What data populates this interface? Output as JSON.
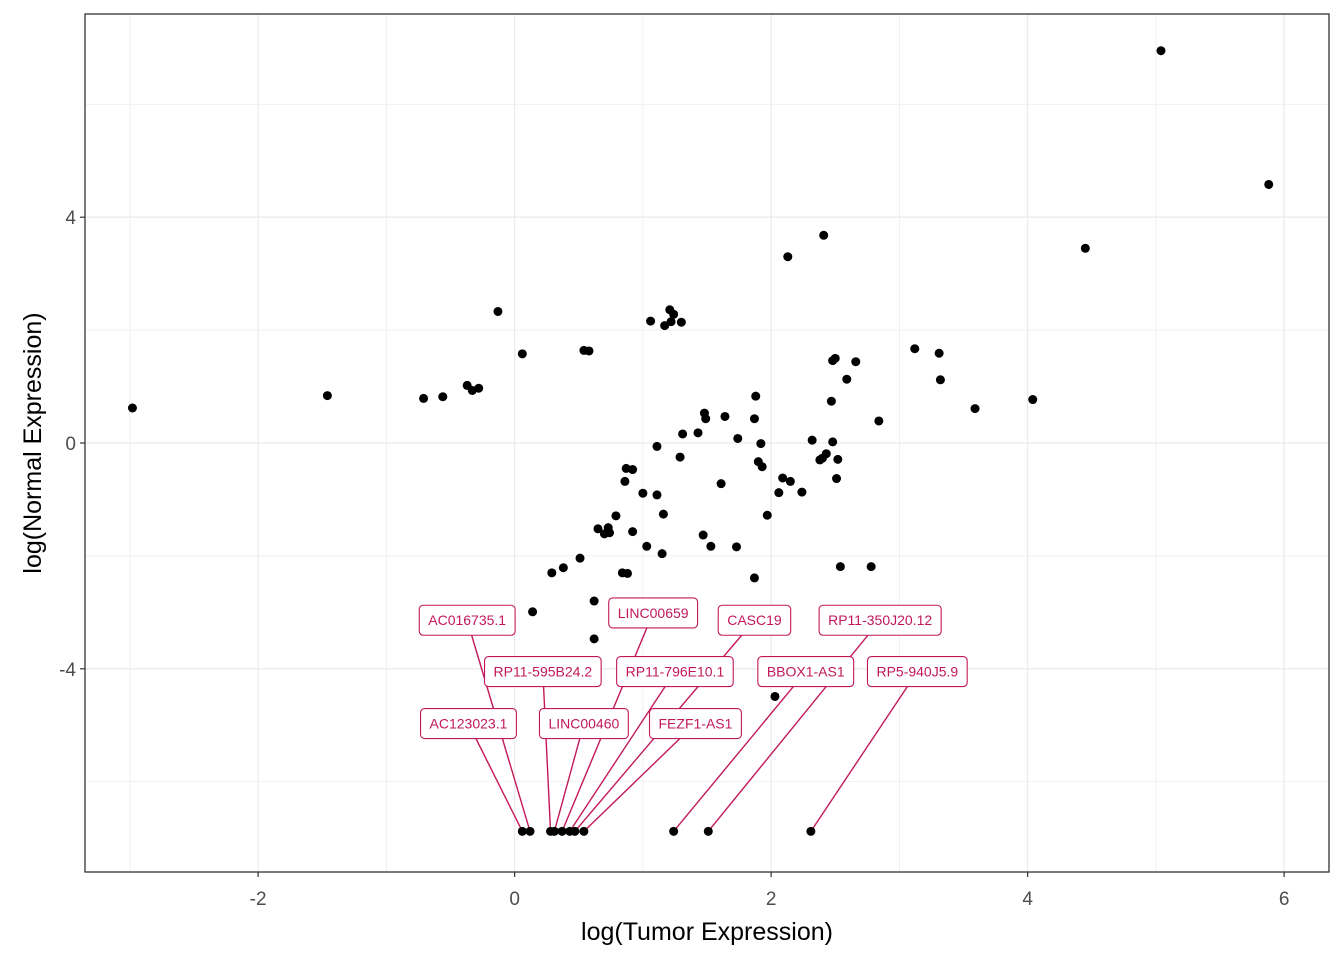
{
  "chart_data": {
    "type": "scatter",
    "title": "",
    "xlabel": "log(Tumor Expression)",
    "ylabel": "log(Normal Expression)",
    "xlim": [
      -3.35,
      6.35
    ],
    "ylim": [
      -7.6,
      7.6
    ],
    "x_ticks": [
      -2,
      0,
      2,
      4,
      6
    ],
    "y_ticks": [
      -4,
      0,
      4
    ],
    "x_tick_labels": [
      "-2",
      "0",
      "2",
      "4",
      "6"
    ],
    "y_tick_labels": [
      "-4",
      "0",
      "4"
    ],
    "grid": true,
    "colors": {
      "points": "#000000",
      "label": "#c2185b",
      "grid": "#ebebeb",
      "panel_border": "#333333"
    },
    "points": [
      [
        -2.98,
        0.62
      ],
      [
        -1.46,
        0.84
      ],
      [
        -0.71,
        0.79
      ],
      [
        -0.56,
        0.82
      ],
      [
        -0.37,
        1.02
      ],
      [
        -0.33,
        0.93
      ],
      [
        -0.28,
        0.97
      ],
      [
        -0.13,
        2.33
      ],
      [
        0.06,
        1.58
      ],
      [
        0.54,
        1.64
      ],
      [
        0.58,
        1.63
      ],
      [
        1.06,
        2.16
      ],
      [
        1.17,
        2.08
      ],
      [
        1.21,
        2.36
      ],
      [
        1.24,
        2.28
      ],
      [
        1.22,
        2.15
      ],
      [
        1.3,
        2.14
      ],
      [
        2.41,
        3.68
      ],
      [
        2.13,
        3.3
      ],
      [
        4.45,
        3.45
      ],
      [
        5.04,
        6.95
      ],
      [
        5.88,
        4.58
      ],
      [
        3.12,
        1.67
      ],
      [
        3.31,
        1.59
      ],
      [
        3.32,
        1.12
      ],
      [
        2.48,
        1.46
      ],
      [
        2.5,
        1.5
      ],
      [
        2.66,
        1.44
      ],
      [
        2.59,
        1.13
      ],
      [
        2.47,
        0.74
      ],
      [
        1.88,
        0.83
      ],
      [
        1.87,
        0.43
      ],
      [
        1.48,
        0.53
      ],
      [
        1.49,
        0.43
      ],
      [
        1.64,
        0.47
      ],
      [
        1.43,
        0.18
      ],
      [
        1.31,
        0.16
      ],
      [
        1.11,
        -0.06
      ],
      [
        1.29,
        -0.25
      ],
      [
        1.74,
        0.08
      ],
      [
        1.92,
        -0.01
      ],
      [
        2.32,
        0.05
      ],
      [
        2.48,
        0.02
      ],
      [
        2.43,
        -0.19
      ],
      [
        2.4,
        -0.27
      ],
      [
        2.38,
        -0.3
      ],
      [
        2.52,
        -0.29
      ],
      [
        1.9,
        -0.33
      ],
      [
        1.93,
        -0.42
      ],
      [
        2.09,
        -0.62
      ],
      [
        2.15,
        -0.68
      ],
      [
        2.51,
        -0.63
      ],
      [
        2.24,
        -0.87
      ],
      [
        2.06,
        -0.88
      ],
      [
        1.61,
        -0.72
      ],
      [
        1.97,
        -1.28
      ],
      [
        2.84,
        0.39
      ],
      [
        3.59,
        0.61
      ],
      [
        4.04,
        0.77
      ],
      [
        0.87,
        -0.45
      ],
      [
        0.92,
        -0.47
      ],
      [
        0.86,
        -0.68
      ],
      [
        1.11,
        -0.92
      ],
      [
        1.0,
        -0.89
      ],
      [
        1.16,
        -1.26
      ],
      [
        0.79,
        -1.29
      ],
      [
        0.65,
        -1.52
      ],
      [
        0.73,
        -1.5
      ],
      [
        0.74,
        -1.59
      ],
      [
        0.7,
        -1.61
      ],
      [
        0.92,
        -1.57
      ],
      [
        1.03,
        -1.83
      ],
      [
        1.15,
        -1.96
      ],
      [
        0.51,
        -2.04
      ],
      [
        0.38,
        -2.21
      ],
      [
        0.29,
        -2.3
      ],
      [
        0.84,
        -2.3
      ],
      [
        0.88,
        -2.31
      ],
      [
        1.87,
        -2.39
      ],
      [
        0.14,
        -2.99
      ],
      [
        0.62,
        -2.8
      ],
      [
        0.62,
        -3.47
      ],
      [
        1.47,
        -1.63
      ],
      [
        1.53,
        -1.83
      ],
      [
        1.73,
        -1.84
      ],
      [
        2.54,
        -2.19
      ],
      [
        2.78,
        -2.19
      ],
      [
        2.03,
        -4.49
      ],
      [
        0.06,
        -6.88
      ],
      [
        0.12,
        -6.88
      ],
      [
        0.28,
        -6.88
      ],
      [
        0.31,
        -6.88
      ],
      [
        0.37,
        -6.88
      ],
      [
        0.43,
        -6.88
      ],
      [
        0.47,
        -6.88
      ],
      [
        0.54,
        -6.88
      ],
      [
        1.24,
        -6.88
      ],
      [
        1.51,
        -6.88
      ],
      [
        2.31,
        -6.88
      ]
    ],
    "annotations": [
      {
        "text": "AC016735.1",
        "label_x": -0.37,
        "label_y": -3.14,
        "point_x": 0.12,
        "point_y": -6.88
      },
      {
        "text": "LINC00659",
        "label_x": 1.08,
        "label_y": -3.01,
        "point_x": 0.37,
        "point_y": -6.88
      },
      {
        "text": "CASC19",
        "label_x": 1.87,
        "label_y": -3.14,
        "point_x": 0.47,
        "point_y": -6.88
      },
      {
        "text": "RP11-350J20.12",
        "label_x": 2.85,
        "label_y": -3.14,
        "point_x": 1.51,
        "point_y": -6.88
      },
      {
        "text": "RP11-595B24.2",
        "label_x": 0.22,
        "label_y": -4.05,
        "point_x": 0.28,
        "point_y": -6.88
      },
      {
        "text": "RP11-796E10.1",
        "label_x": 1.25,
        "label_y": -4.05,
        "point_x": 0.43,
        "point_y": -6.88
      },
      {
        "text": "BBOX1-AS1",
        "label_x": 2.27,
        "label_y": -4.05,
        "point_x": 1.24,
        "point_y": -6.88
      },
      {
        "text": "RP5-940J5.9",
        "label_x": 3.14,
        "label_y": -4.05,
        "point_x": 2.31,
        "point_y": -6.88
      },
      {
        "text": "AC123023.1",
        "label_x": -0.36,
        "label_y": -4.97,
        "point_x": 0.06,
        "point_y": -6.88
      },
      {
        "text": "LINC00460",
        "label_x": 0.54,
        "label_y": -4.97,
        "point_x": 0.31,
        "point_y": -6.88
      },
      {
        "text": "FEZF1-AS1",
        "label_x": 1.41,
        "label_y": -4.97,
        "point_x": 0.54,
        "point_y": -6.88
      }
    ]
  }
}
